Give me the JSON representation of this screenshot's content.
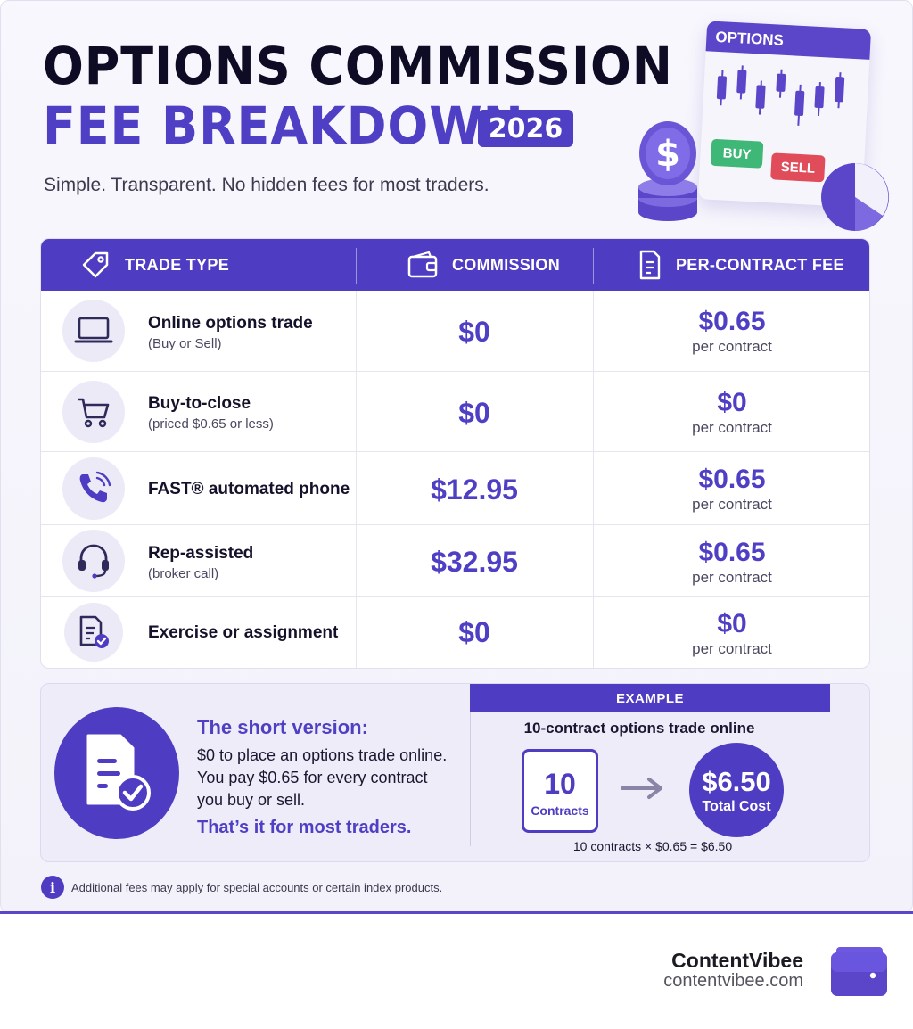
{
  "header": {
    "title_line1": "OPTIONS COMMISSION",
    "title_line2": "FEE BREAKDOWN",
    "year": "2026",
    "subtitle": "Simple. Transparent. No hidden fees for most traders."
  },
  "illustration": {
    "window_title": "OPTIONS",
    "buy_label": "BUY",
    "sell_label": "SELL",
    "coin_symbol": "$"
  },
  "table": {
    "headers": {
      "trade_type": "TRADE TYPE",
      "commission": "COMMISSION",
      "per_contract": "PER-CONTRACT FEE"
    },
    "rows": [
      {
        "name": "Online options trade",
        "sub": "(Buy or Sell)",
        "commission": "$0",
        "fee": "$0.65",
        "unit": "per contract",
        "icon": "laptop-icon"
      },
      {
        "name": "Buy-to-close",
        "sub": "(priced $0.65 or less)",
        "commission": "$0",
        "fee": "$0",
        "unit": "per contract",
        "icon": "cart-icon"
      },
      {
        "name": "FAST® automated phone",
        "sub": "",
        "commission": "$12.95",
        "fee": "$0.65",
        "unit": "per contract",
        "icon": "phone-icon"
      },
      {
        "name": "Rep-assisted",
        "sub": "(broker call)",
        "commission": "$32.95",
        "fee": "$0.65",
        "unit": "per contract",
        "icon": "headset-icon"
      },
      {
        "name": "Exercise or assignment",
        "sub": "",
        "commission": "$0",
        "fee": "$0",
        "unit": "per contract",
        "icon": "document-check-icon"
      }
    ]
  },
  "summary": {
    "title": "The short version:",
    "body": "$0 to place an options trade online. You pay $0.65 for every contract you buy or sell.",
    "footer": "That’s it for most traders.",
    "example_label": "EXAMPLE",
    "example_subtitle": "10-contract options trade online",
    "contracts_number": "10",
    "contracts_label": "Contracts",
    "total_amount": "$6.50",
    "total_label": "Total Cost",
    "formula": "10 contracts × $0.65 = $6.50"
  },
  "note": {
    "icon_glyph": "i",
    "text": "Additional fees may apply for special accounts or certain index products."
  },
  "brand": {
    "name": "ContentVibee",
    "url": "contentvibee.com"
  },
  "colors": {
    "accent": "#4e3dc2",
    "title_dark": "#0e0c24",
    "buy": "#3fb776",
    "sell": "#e04c5a"
  }
}
